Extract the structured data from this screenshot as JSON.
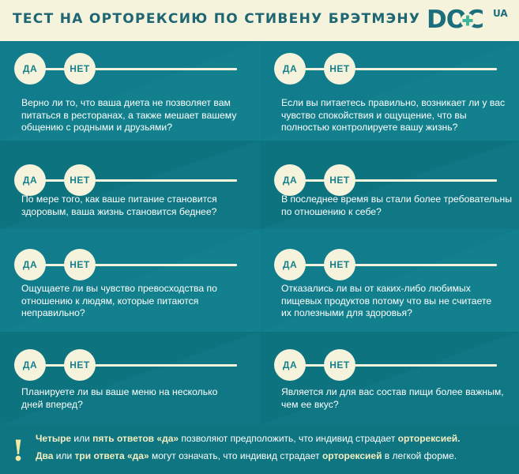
{
  "header": {
    "title": "ТЕСТ НА  ОРТОРЕКСИЮ ПО СТИВЕНУ БРЭТМЭНУ",
    "logo_main": "DOC",
    "logo_sup": "UA"
  },
  "answers": {
    "yes": "ДА",
    "no": "НЕТ"
  },
  "rows": [
    {
      "left": [
        "Верно ли то, что ваша диета не позволяет вам",
        "питаться в ресторанах, а также мешает вашему",
        "общению с родными и друзьями?"
      ],
      "right": [
        "Если вы питаетесь правильно, возникает ли у вас",
        "чувство спокойствия и ощущение, что вы",
        "полностью контролируете вашу жизнь?"
      ]
    },
    {
      "left": [
        "По мере того, как ваше питание становится",
        "здоровым, ваша жизнь становится беднее?"
      ],
      "right": [
        "В последнее время вы стали более требовательны",
        "по отношению к себе?"
      ]
    },
    {
      "left": [
        "Ощущаете ли вы чувство превосходства по",
        "отношению к людям, которые питаются",
        "неправильно?"
      ],
      "right": [
        "Отказались ли вы от каких-либо любимых",
        "пищевых продуктов потому что вы не считаете",
        "их полезными для здоровья?"
      ]
    },
    {
      "left": [
        "Планируете ли вы ваше меню на несколько",
        "дней вперед?"
      ],
      "right": [
        "Является ли для вас состав пищи более важным,",
        "чем ее вкус?"
      ]
    }
  ],
  "footer": {
    "line1": [
      {
        "text": "Четыре",
        "bold": true
      },
      {
        "text": " или ",
        "bold": false
      },
      {
        "text": "пять ответов «да»",
        "bold": true
      },
      {
        "text": " позволяют предположить, что индивид страдает ",
        "bold": false
      },
      {
        "text": "орторексией.",
        "bold": true
      }
    ],
    "line2": [
      {
        "text": "Два",
        "bold": true
      },
      {
        "text": " или ",
        "bold": false
      },
      {
        "text": "три ответа «да»",
        "bold": true
      },
      {
        "text": " могут означать, что индивид страдает ",
        "bold": false
      },
      {
        "text": "орторексией",
        "bold": true
      },
      {
        "text": " в легкой форме.",
        "bold": false
      }
    ]
  },
  "colors": {
    "background": "#13838f",
    "cream": "#f5f3dc",
    "header_text": "#1e6673",
    "logo_plus": "#3fb59a"
  }
}
